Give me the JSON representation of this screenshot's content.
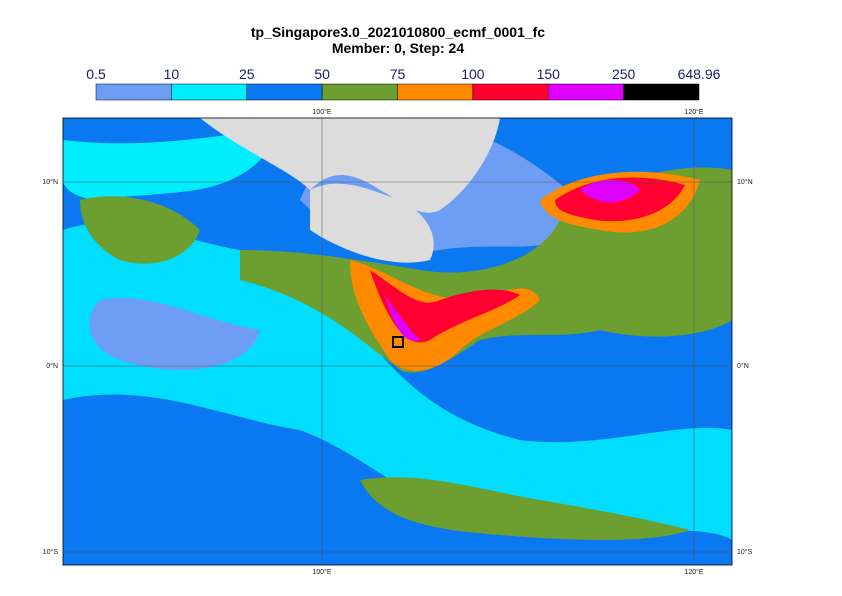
{
  "title": "tp_Singapore3.0_2021010800_ecmf_0001_fc",
  "subtitle": "Member: 0, Step: 24",
  "colorbar": {
    "levels": [
      0.5,
      10,
      25,
      50,
      75,
      100,
      150,
      250,
      648.96
    ],
    "colors": [
      "#6e9ef4",
      "#00eeff",
      "#0a78f0",
      "#6d9f30",
      "#ff8a00",
      "#ff0030",
      "#e000ff",
      "#000000"
    ]
  },
  "map": {
    "lon_labels": [
      "100°E",
      "120°E"
    ],
    "lat_labels": [
      "10°N",
      "0°N",
      "10°S"
    ]
  }
}
